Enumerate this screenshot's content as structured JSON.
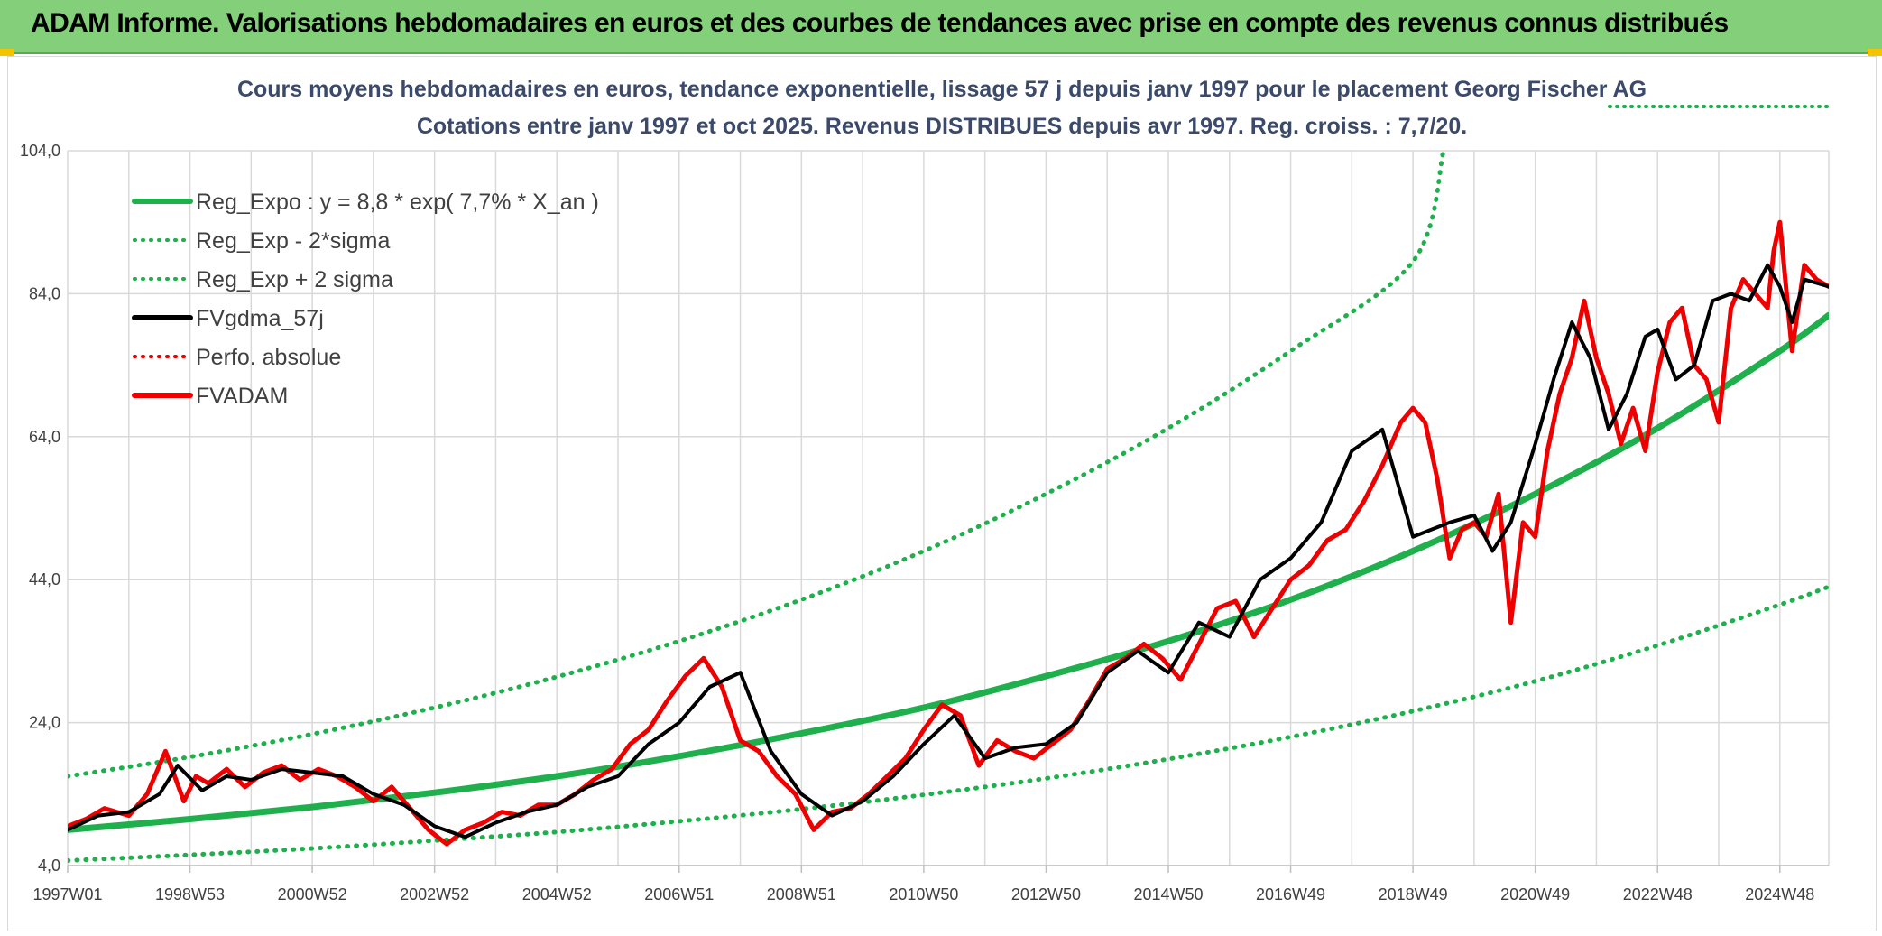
{
  "banner": {
    "title": "ADAM Informe. Valorisations hebdomadaires en euros et des courbes de tendances avec prise en compte des revenus connus distribués"
  },
  "colors": {
    "banner_bg": "#84cf79",
    "trend": "#1fb04d",
    "fvadam": "#ee0000",
    "gdma": "#000000",
    "title": "#3b4a6b",
    "grid": "#d9d9d9"
  },
  "chart_data": {
    "type": "line",
    "title": "Cours moyens hebdomadaires en euros, tendance exponentielle, lissage 57 j depuis janv 1997 pour le placement Georg Fischer AG",
    "subtitle": "Cotations entre janv 1997 et oct 2025. Revenus DISTRIBUES depuis avr 1997. Reg. croiss. : 7,7/20.",
    "xlabel": "",
    "ylabel": "",
    "xlim": [
      1997.0,
      2025.8
    ],
    "ylim": [
      4.0,
      104.0
    ],
    "y_ticks": [
      "4,0",
      "24,0",
      "44,0",
      "64,0",
      "84,0",
      "104,0"
    ],
    "y_tick_values": [
      4,
      24,
      44,
      64,
      84,
      104
    ],
    "x_ticks": [
      "1997W01",
      "1998W53",
      "2000W52",
      "2002W52",
      "2004W52",
      "2006W51",
      "2008W51",
      "2010W50",
      "2012W50",
      "2014W50",
      "2016W49",
      "2018W49",
      "2020W49",
      "2022W48",
      "2024W48"
    ],
    "x_tick_values": [
      1997.0,
      1999.0,
      2001.0,
      2003.0,
      2005.0,
      2007.0,
      2009.0,
      2011.0,
      2013.0,
      2015.0,
      2017.0,
      2019.0,
      2021.0,
      2023.0,
      2025.0
    ],
    "grid": true,
    "legend_position": "top-left",
    "legend": [
      {
        "label": "Reg_Expo : y = 8,8 * exp( 7,7% *  X_an )",
        "style": "solid",
        "color": "#1fb04d"
      },
      {
        "label": "Reg_Exp - 2*sigma",
        "style": "dotted",
        "color": "#1fb04d"
      },
      {
        "label": "Reg_Exp + 2 sigma",
        "style": "dotted",
        "color": "#1fb04d"
      },
      {
        "label": "FVgdma_57j",
        "style": "solid",
        "color": "#000000"
      },
      {
        "label": "Perfo. absolue",
        "style": "dotted",
        "color": "#ee0000"
      },
      {
        "label": "FVADAM",
        "style": "solid",
        "color": "#ee0000"
      }
    ],
    "series": [
      {
        "name": "Reg_Expo",
        "x": [
          1997.0,
          1999.0,
          2001.0,
          2003.0,
          2005.0,
          2007.0,
          2009.0,
          2011.0,
          2013.0,
          2015.0,
          2017.0,
          2019.0,
          2021.0,
          2023.0,
          2025.0,
          2025.8
        ],
        "y": [
          9.0,
          10.5,
          12.2,
          14.2,
          16.5,
          19.3,
          22.5,
          26.1,
          30.5,
          35.4,
          41.2,
          48.0,
          56.0,
          65.2,
          76.0,
          81.0
        ]
      },
      {
        "name": "Reg_Exp - 2*sigma",
        "x": [
          1997.0,
          1999.0,
          2001.0,
          2003.0,
          2005.0,
          2007.0,
          2009.0,
          2011.0,
          2013.0,
          2015.0,
          2017.0,
          2019.0,
          2021.0,
          2023.0,
          2025.0,
          2025.8
        ],
        "y": [
          4.7,
          5.5,
          6.4,
          7.5,
          8.7,
          10.2,
          11.9,
          13.9,
          16.2,
          18.9,
          22.0,
          25.6,
          29.8,
          34.8,
          40.5,
          43.0
        ]
      },
      {
        "name": "Reg_Exp + 2 sigma",
        "x": [
          1997.0,
          1999.0,
          2001.0,
          2003.0,
          2005.0,
          2007.0,
          2009.0,
          2011.0,
          2013.0,
          2015.0,
          2017.0,
          2019.0,
          2019.5
        ],
        "y": [
          16.5,
          19.2,
          22.4,
          26.1,
          30.4,
          35.4,
          41.2,
          48.0,
          56.0,
          65.2,
          76.0,
          88.5,
          104.0
        ]
      },
      {
        "name": "FVgdma_57j",
        "x": [
          1997.0,
          1997.5,
          1998.0,
          1998.5,
          1998.8,
          1999.2,
          1999.6,
          2000.0,
          2000.5,
          2001.0,
          2001.5,
          2002.0,
          2002.5,
          2003.0,
          2003.5,
          2004.0,
          2004.5,
          2005.0,
          2005.5,
          2006.0,
          2006.5,
          2007.0,
          2007.5,
          2008.0,
          2008.5,
          2009.0,
          2009.5,
          2010.0,
          2010.5,
          2011.0,
          2011.5,
          2012.0,
          2012.5,
          2013.0,
          2013.5,
          2014.0,
          2014.5,
          2015.0,
          2015.5,
          2016.0,
          2016.5,
          2017.0,
          2017.5,
          2018.0,
          2018.5,
          2019.0,
          2019.3,
          2019.6,
          2020.0,
          2020.3,
          2020.6,
          2021.0,
          2021.3,
          2021.6,
          2021.9,
          2022.2,
          2022.5,
          2022.8,
          2023.0,
          2023.3,
          2023.6,
          2023.9,
          2024.2,
          2024.5,
          2024.8,
          2025.0,
          2025.2,
          2025.4,
          2025.6,
          2025.8
        ],
        "y": [
          9.0,
          11.0,
          11.5,
          14.0,
          18.0,
          14.5,
          16.5,
          16.0,
          17.5,
          17.0,
          16.5,
          14.0,
          12.5,
          9.5,
          8.0,
          10.0,
          11.5,
          12.5,
          15.0,
          16.5,
          21.0,
          24.0,
          29.0,
          31.0,
          20.0,
          14.0,
          11.0,
          13.0,
          16.5,
          21.0,
          25.0,
          19.0,
          20.5,
          21.0,
          24.0,
          31.0,
          34.0,
          31.0,
          38.0,
          36.0,
          44.0,
          47.0,
          52.0,
          62.0,
          65.0,
          50.0,
          51.0,
          52.0,
          53.0,
          48.0,
          52.0,
          63.0,
          72.0,
          80.0,
          75.0,
          65.0,
          70.0,
          78.0,
          79.0,
          72.0,
          74.0,
          83.0,
          84.0,
          83.0,
          88.0,
          85.0,
          80.0,
          86.0,
          85.5,
          85.0
        ]
      },
      {
        "name": "FVADAM",
        "x": [
          1997.0,
          1997.3,
          1997.6,
          1998.0,
          1998.3,
          1998.6,
          1998.9,
          1999.1,
          1999.3,
          1999.6,
          1999.9,
          2000.2,
          2000.5,
          2000.8,
          2001.1,
          2001.4,
          2001.7,
          2002.0,
          2002.3,
          2002.6,
          2002.9,
          2003.2,
          2003.5,
          2003.8,
          2004.1,
          2004.4,
          2004.7,
          2005.0,
          2005.3,
          2005.6,
          2005.9,
          2006.2,
          2006.5,
          2006.8,
          2007.1,
          2007.4,
          2007.7,
          2008.0,
          2008.3,
          2008.6,
          2008.9,
          2009.2,
          2009.5,
          2009.8,
          2010.1,
          2010.4,
          2010.7,
          2011.0,
          2011.3,
          2011.6,
          2011.9,
          2012.2,
          2012.5,
          2012.8,
          2013.1,
          2013.4,
          2013.7,
          2014.0,
          2014.3,
          2014.6,
          2014.9,
          2015.2,
          2015.5,
          2015.8,
          2016.1,
          2016.4,
          2016.7,
          2017.0,
          2017.3,
          2017.6,
          2017.9,
          2018.2,
          2018.5,
          2018.8,
          2019.0,
          2019.2,
          2019.4,
          2019.6,
          2019.8,
          2020.0,
          2020.2,
          2020.3,
          2020.4,
          2020.6,
          2020.8,
          2021.0,
          2021.2,
          2021.4,
          2021.6,
          2021.8,
          2022.0,
          2022.2,
          2022.4,
          2022.6,
          2022.8,
          2023.0,
          2023.2,
          2023.4,
          2023.6,
          2023.8,
          2024.0,
          2024.2,
          2024.4,
          2024.6,
          2024.8,
          2024.9,
          2025.0,
          2025.2,
          2025.4,
          2025.6,
          2025.8
        ],
        "y": [
          9.5,
          10.5,
          12.0,
          11.0,
          14.0,
          20.0,
          13.0,
          16.5,
          15.5,
          17.5,
          15.0,
          17.0,
          18.0,
          16.0,
          17.5,
          16.5,
          15.0,
          13.0,
          15.0,
          12.0,
          9.0,
          7.0,
          9.0,
          10.0,
          11.5,
          11.0,
          12.5,
          12.5,
          14.0,
          16.0,
          17.5,
          21.0,
          23.0,
          27.0,
          30.5,
          33.0,
          29.0,
          21.5,
          20.0,
          16.5,
          14.0,
          9.0,
          11.5,
          12.0,
          14.0,
          16.5,
          19.0,
          23.0,
          26.5,
          25.0,
          18.0,
          21.5,
          20.0,
          19.0,
          21.0,
          23.0,
          27.0,
          31.5,
          33.0,
          35.0,
          33.0,
          30.0,
          35.0,
          40.0,
          41.0,
          36.0,
          40.0,
          44.0,
          46.0,
          49.5,
          51.0,
          55.0,
          60.0,
          66.0,
          68.0,
          66.0,
          58.0,
          47.0,
          51.0,
          52.0,
          50.0,
          53.0,
          56.0,
          38.0,
          52.0,
          50.0,
          62.0,
          70.0,
          75.0,
          83.0,
          75.0,
          70.0,
          63.0,
          68.0,
          62.0,
          73.0,
          80.0,
          82.0,
          74.0,
          72.0,
          66.0,
          82.0,
          86.0,
          84.0,
          82.0,
          90.0,
          94.0,
          76.0,
          88.0,
          86.0,
          85.0
        ]
      }
    ]
  }
}
